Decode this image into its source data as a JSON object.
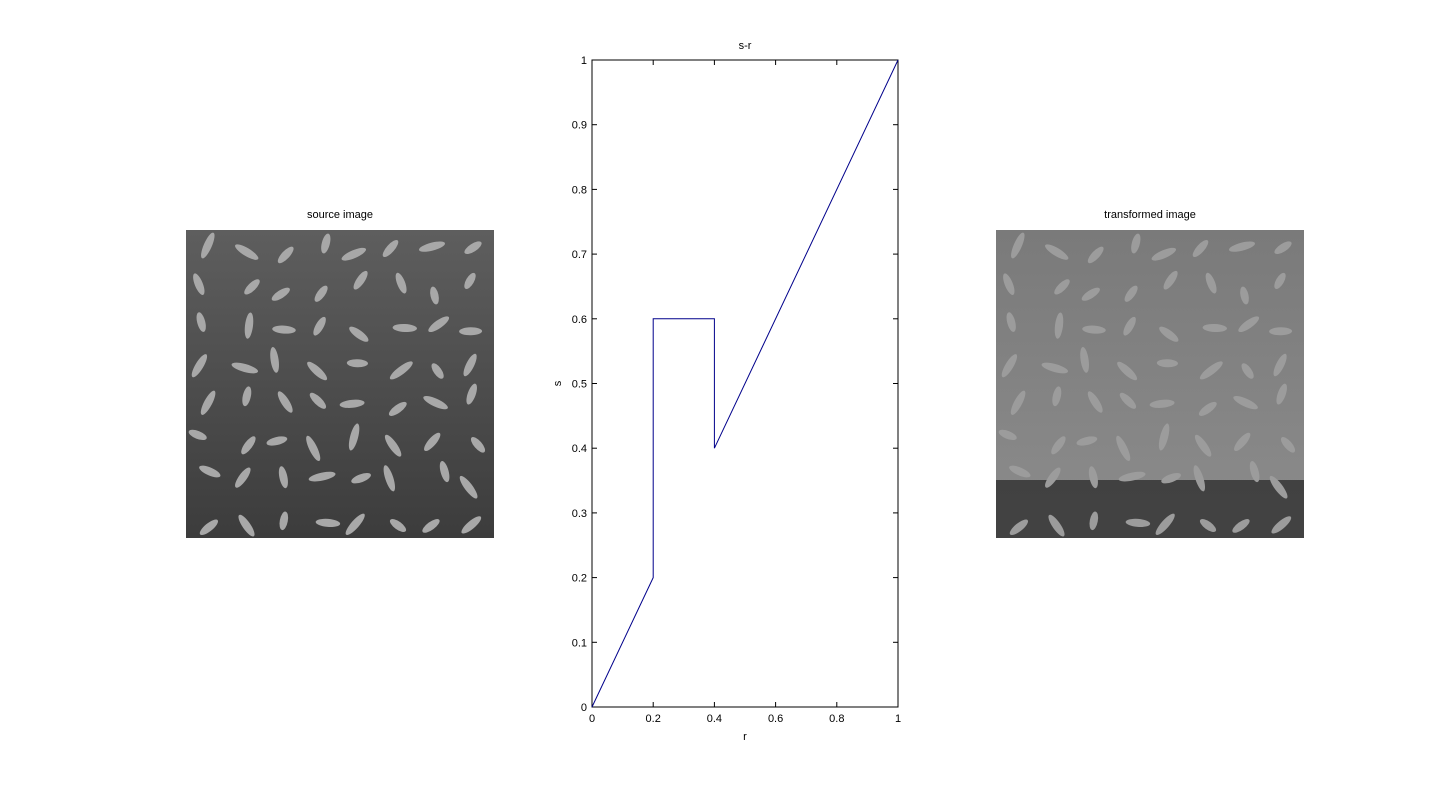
{
  "figure": {
    "left_title": "source image",
    "right_title": "transformed image"
  },
  "colors": {
    "line": "#00008b",
    "source_background": "#5e5e5e",
    "source_grain": "#a8a8a8",
    "transformed_background": "#7a7a7a",
    "transformed_grain": "#9c9c9c",
    "transformed_dark_band": "#2a2a2a"
  },
  "chart_data": {
    "type": "line",
    "title": "s-r",
    "xlabel": "r",
    "ylabel": "s",
    "xlim": [
      0,
      1
    ],
    "ylim": [
      0,
      1
    ],
    "x_ticks": [
      "0",
      "0.2",
      "0.4",
      "0.6",
      "0.8",
      "1"
    ],
    "y_ticks": [
      "0",
      "0.1",
      "0.2",
      "0.3",
      "0.4",
      "0.5",
      "0.6",
      "0.7",
      "0.8",
      "0.9",
      "1"
    ],
    "grid": false,
    "series": [
      {
        "x": [
          0,
          0.2,
          0.2,
          0.4,
          0.4,
          1
        ],
        "y": [
          0,
          0.2,
          0.6,
          0.6,
          0.4,
          1
        ]
      }
    ]
  }
}
